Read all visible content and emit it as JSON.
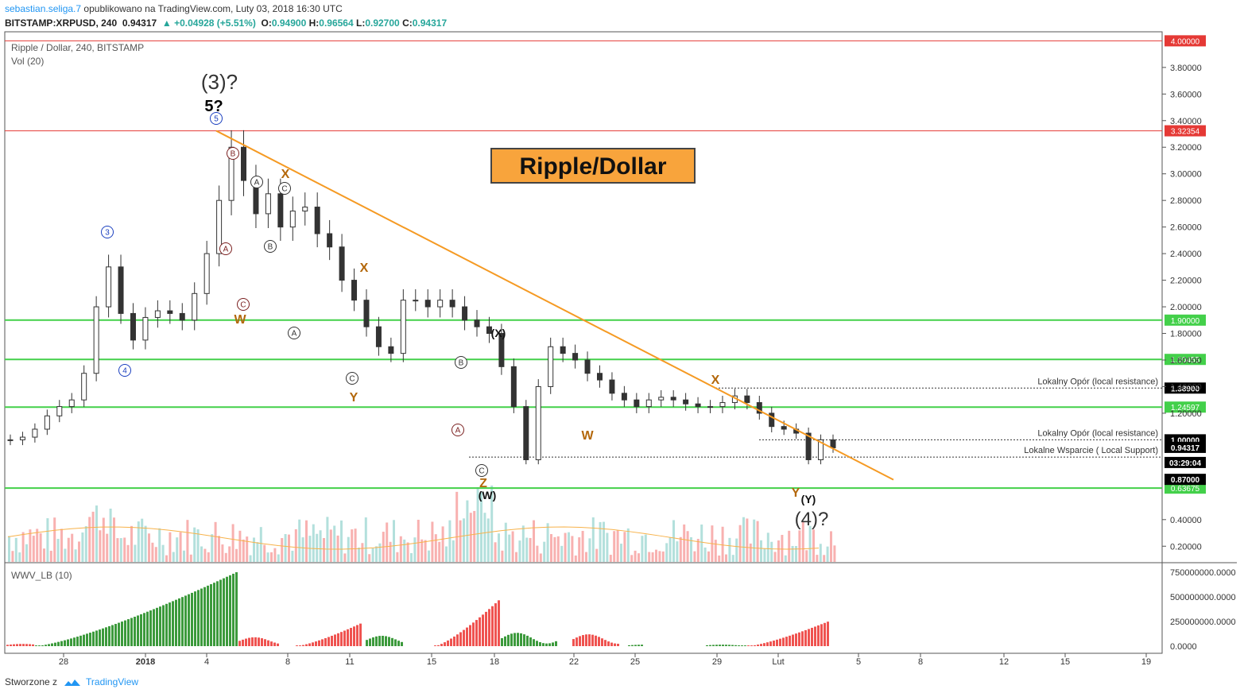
{
  "header": {
    "user": "sebastian.seliga.7",
    "published": "opublikowano na TradingView.com, Luty 03, 2018 16:30 UTC",
    "symbol": "BITSTAMP:XRPUSD, 240",
    "last": "0.94317",
    "change": "▲ +0.04928 (+5.51%)",
    "o_label": "O:",
    "o": "0.94900",
    "h_label": "H:",
    "h": "0.96564",
    "l_label": "L:",
    "l": "0.92700",
    "c_label": "C:",
    "c": "0.94317"
  },
  "footer": {
    "created_with": "Stworzone z",
    "brand": "TradingView"
  },
  "chart_data": {
    "type": "candlestick",
    "title": "Ripple / Dollar, 240, BITSTAMP",
    "volume_label": "Vol (20)",
    "banner": "Ripple/Dollar",
    "price_axis": {
      "range": [
        0.1,
        4.05
      ],
      "ticks": [
        "0.20000",
        "0.40000",
        "1.20000",
        "1.40000",
        "1.60000",
        "1.80000",
        "2.00000",
        "2.20000",
        "2.40000",
        "2.60000",
        "2.80000",
        "3.00000",
        "3.20000",
        "3.40000",
        "3.60000",
        "3.80000"
      ]
    },
    "x_ticks": [
      "28",
      "2018",
      "4",
      "8",
      "11",
      "15",
      "18",
      "22",
      "25",
      "29",
      "Lut",
      "5",
      "8",
      "12",
      "15",
      "19"
    ],
    "horizontal_levels": [
      {
        "price": 4.0,
        "label": "4.00000",
        "color": "#e53935"
      },
      {
        "price": 3.32354,
        "label": "3.32354",
        "color": "#e53935"
      },
      {
        "price": 1.9,
        "label": "1.90000",
        "color": "#43d04a"
      },
      {
        "price": 1.60455,
        "label": "1.60455",
        "color": "#43d04a"
      },
      {
        "price": 1.24597,
        "label": "1.24597",
        "color": "#43d04a"
      },
      {
        "price": 0.63675,
        "label": "0.63675",
        "color": "#43d04a"
      }
    ],
    "price_badges": [
      {
        "label": "1.38900"
      },
      {
        "label": "1.00000"
      },
      {
        "label": "0.94317"
      },
      {
        "label": "03:29:04"
      },
      {
        "label": "0.87000"
      }
    ],
    "annotations": [
      "Lokalny Opór (local resistance)",
      "Lokalny Opór (local resistance)",
      "Lokalne Wsparcie ( Local Support)"
    ],
    "wave_labels": [
      "(3)?",
      "5?",
      "5",
      "3",
      "4",
      "B",
      "A",
      "C",
      "A",
      "B",
      "C",
      "W",
      "X",
      "A",
      "X",
      "C",
      "Y",
      "B",
      "A",
      "C",
      "Z",
      "(W)",
      "(X)",
      "W",
      "X",
      "Y",
      "(Y)",
      "(4)?"
    ],
    "close_path": [
      1.0,
      1.02,
      1.08,
      1.18,
      1.25,
      1.3,
      1.5,
      2.0,
      2.3,
      1.95,
      1.75,
      1.92,
      1.97,
      1.95,
      1.9,
      2.1,
      2.4,
      2.8,
      3.2,
      2.95,
      2.7,
      2.85,
      2.6,
      2.72,
      2.75,
      2.55,
      2.45,
      2.2,
      2.05,
      1.85,
      1.7,
      1.65,
      2.05,
      2.05,
      2.0,
      2.05,
      2.0,
      1.9,
      1.85,
      1.8,
      1.55,
      1.25,
      0.85,
      1.4,
      1.7,
      1.65,
      1.6,
      1.5,
      1.45,
      1.35,
      1.3,
      1.25,
      1.3,
      1.32,
      1.3,
      1.27,
      1.25,
      1.25,
      1.28,
      1.33,
      1.28,
      1.2,
      1.1,
      1.08,
      1.05,
      0.85,
      1.0,
      0.94
    ],
    "indicator": {
      "label": "WWV_LB (10)",
      "ticks": [
        "750000000.0000",
        "500000000.0000",
        "250000000.0000",
        "0.0000"
      ]
    }
  }
}
